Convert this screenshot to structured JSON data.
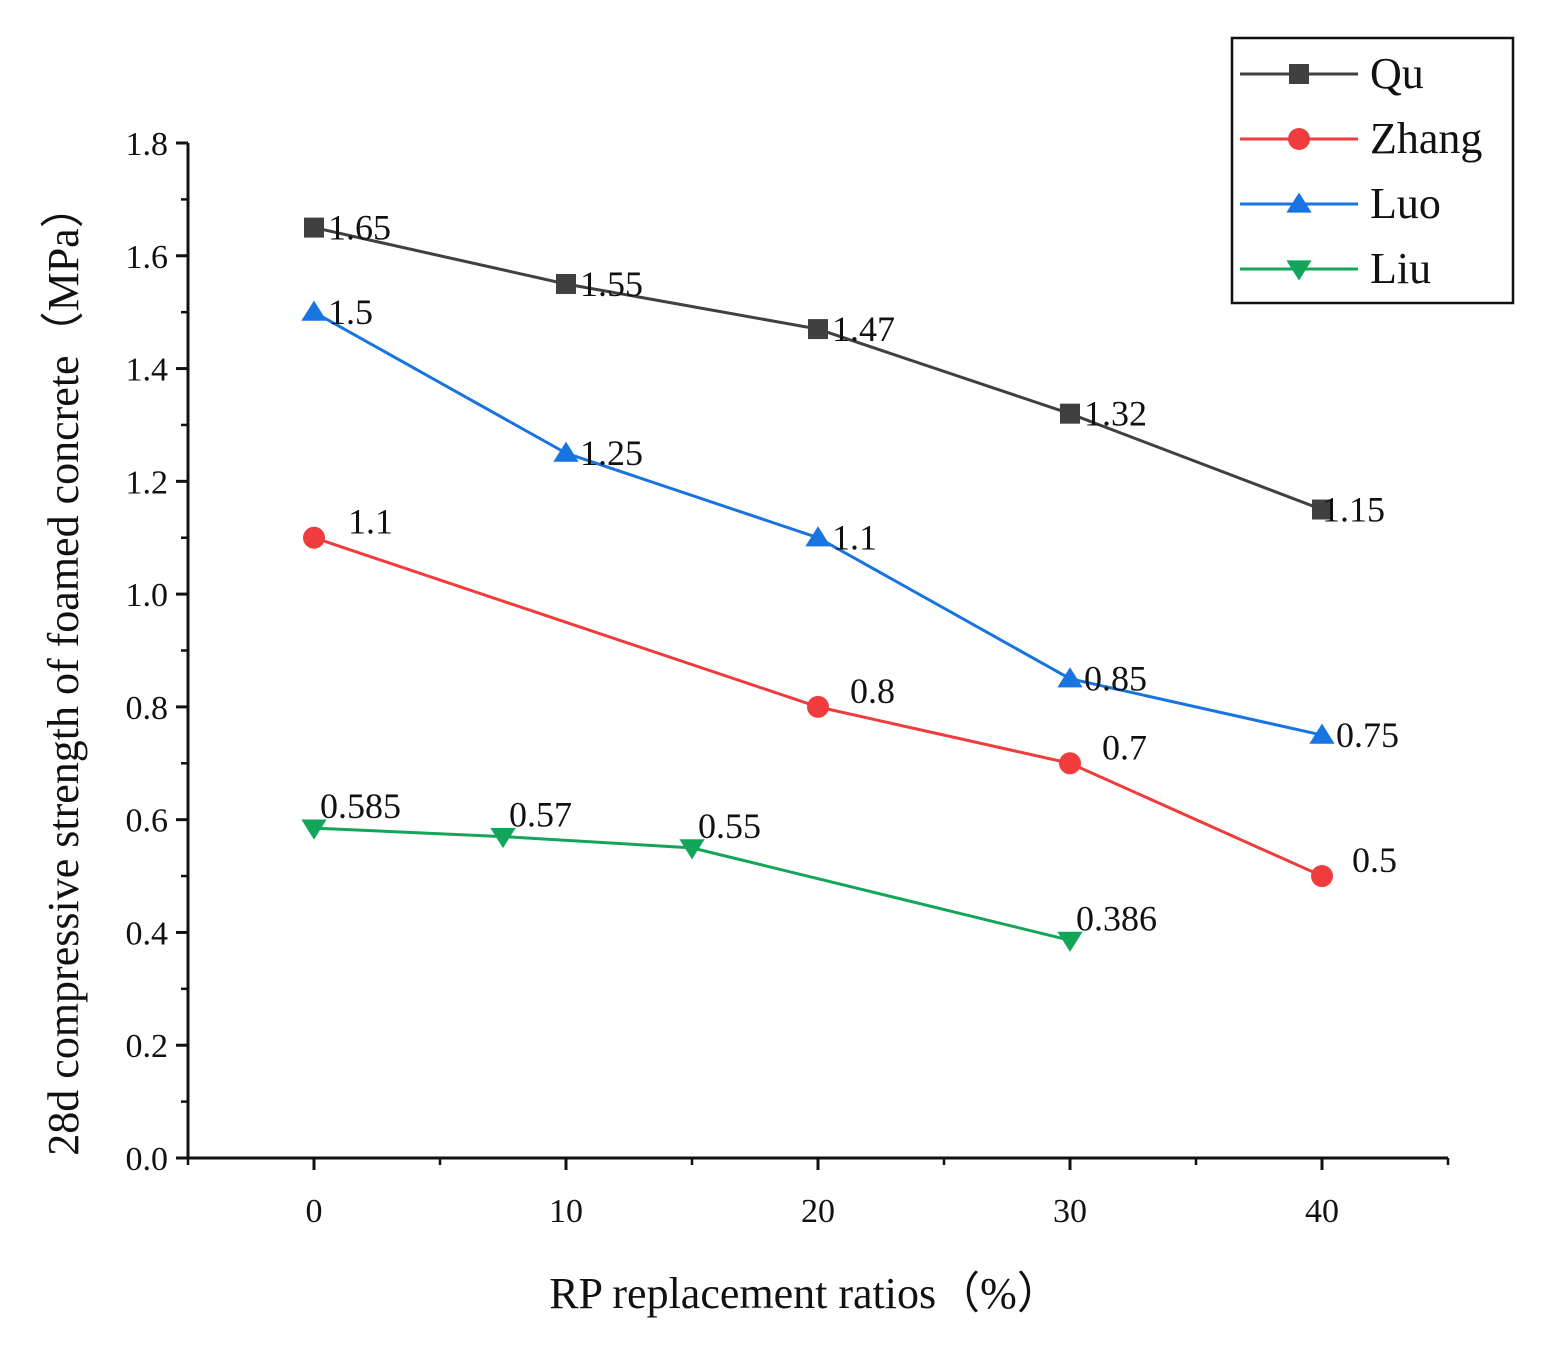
{
  "chart_data": {
    "type": "line",
    "xlabel": "RP replacement ratios（%）",
    "ylabel": "28d compressive strength of foamed concrete（MPa）",
    "xlim": [
      -5,
      45
    ],
    "ylim": [
      0,
      1.8
    ],
    "x_ticks": [
      0,
      10,
      20,
      30,
      40
    ],
    "x_tick_labels": [
      "0",
      "10",
      "20",
      "30",
      "40"
    ],
    "y_ticks": [
      0,
      0.2,
      0.4,
      0.6,
      0.8,
      1.0,
      1.2,
      1.4,
      1.6,
      1.8
    ],
    "y_tick_labels": [
      "0.0",
      "0.2",
      "0.4",
      "0.6",
      "0.8",
      "1.0",
      "1.2",
      "1.4",
      "1.6",
      "1.8"
    ],
    "grid": false,
    "legend_position": "top-right",
    "series": [
      {
        "name": "Qu",
        "color": "#404040",
        "marker": "square",
        "x": [
          0,
          10,
          20,
          30,
          40
        ],
        "values": [
          1.65,
          1.55,
          1.47,
          1.32,
          1.15
        ],
        "labels": [
          "1.65",
          "1.55",
          "1.47",
          "1.32",
          "1.15"
        ]
      },
      {
        "name": "Zhang",
        "color": "#f03c3c",
        "marker": "circle",
        "x": [
          0,
          20,
          30,
          40
        ],
        "values": [
          1.1,
          0.8,
          0.7,
          0.5
        ],
        "labels": [
          "1.1",
          "0.8",
          "0.7",
          "0.5"
        ]
      },
      {
        "name": "Luo",
        "color": "#1874e0",
        "marker": "triangle-up",
        "x": [
          0,
          10,
          20,
          30,
          40
        ],
        "values": [
          1.5,
          1.25,
          1.1,
          0.85,
          0.75
        ],
        "labels": [
          "1.5",
          "1.25",
          "1.1",
          "0.85",
          "0.75"
        ]
      },
      {
        "name": "Liu",
        "color": "#13a55a",
        "marker": "triangle-down",
        "x": [
          0,
          7.5,
          15,
          30
        ],
        "values": [
          0.585,
          0.57,
          0.55,
          0.386
        ],
        "labels": [
          "0.585",
          "0.57",
          "0.55",
          "0.386"
        ]
      }
    ]
  }
}
